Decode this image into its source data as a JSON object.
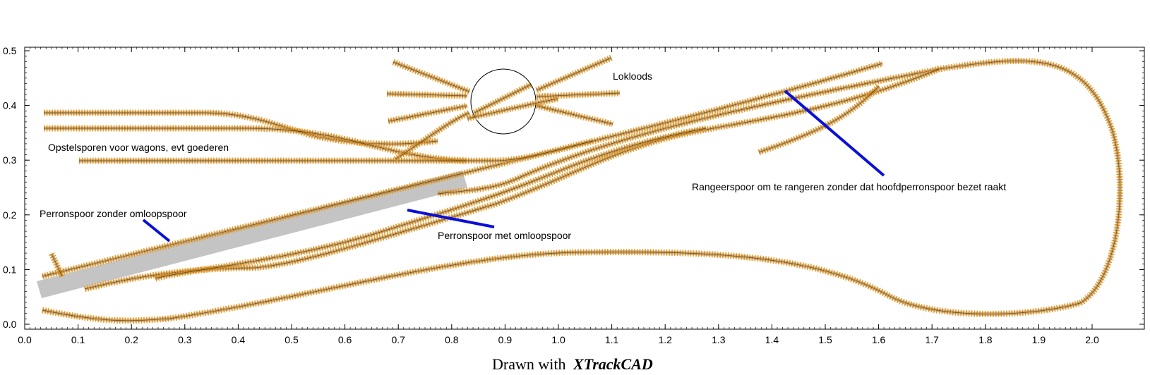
{
  "plan": {
    "x_axis": {
      "ticks": [
        "0.0",
        "0.1",
        "0.2",
        "0.3",
        "0.4",
        "0.5",
        "0.6",
        "0.7",
        "0.8",
        "0.9",
        "1.0",
        "1.1",
        "1.2",
        "1.3",
        "1.4",
        "1.5",
        "1.6",
        "1.7",
        "1.8",
        "1.9",
        "2.0"
      ]
    },
    "y_axis": {
      "ticks": [
        "0.0",
        "0.1",
        "0.2",
        "0.3",
        "0.4",
        "0.5"
      ]
    }
  },
  "labels": {
    "lokloods": "Lokloods",
    "opstel": "Opstelsporen voor wagons, evt goederen",
    "perron_zonder": "Perronspoor zonder omloopspoor",
    "perron_met": "Perronspoor met omloopspoor",
    "rangeer": "Rangeerspoor om te rangeren zonder dat hoofdperronspoor bezet raakt"
  },
  "footer": {
    "prefix": "Drawn with",
    "brand": "XTrackCAD"
  },
  "colors": {
    "rail": "#b77a22",
    "sleeper": "#e8a030",
    "platform": "#c4c4c4",
    "pointer": "#0a10d8"
  }
}
